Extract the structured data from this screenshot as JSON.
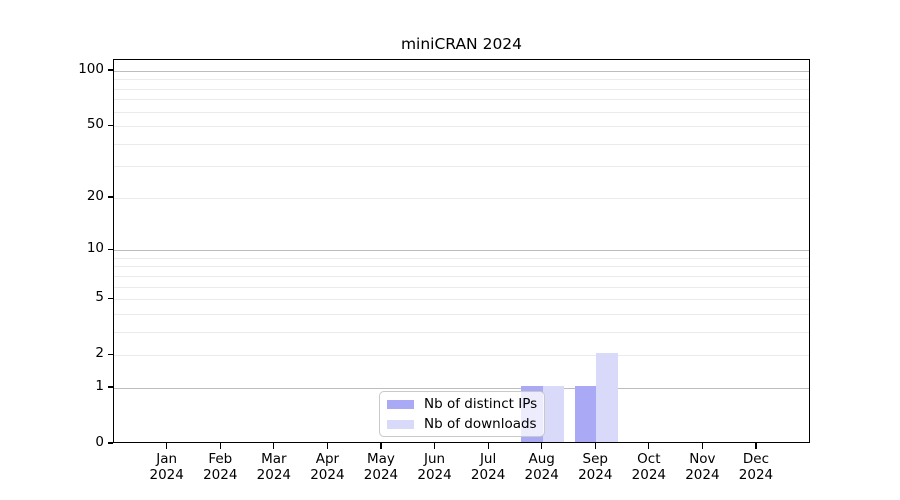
{
  "figure": {
    "title": "miniCRAN 2024"
  },
  "chart_data": {
    "type": "bar",
    "title": "miniCRAN 2024",
    "categories": [
      "Jan",
      "Feb",
      "Mar",
      "Apr",
      "May",
      "Jun",
      "Jul",
      "Aug",
      "Sep",
      "Oct",
      "Nov",
      "Dec"
    ],
    "category_year": "2024",
    "series": [
      {
        "name": "Nb of distinct IPs",
        "color": "#a9a9f6",
        "values": [
          0,
          0,
          0,
          0,
          0,
          0,
          0,
          1,
          1,
          0,
          0,
          0
        ]
      },
      {
        "name": "Nb of downloads",
        "color": "#d9d9f9",
        "values": [
          0,
          0,
          0,
          0,
          0,
          0,
          0,
          1,
          2,
          0,
          0,
          0
        ]
      }
    ],
    "yscale": "log1p",
    "ylim": [
      0,
      100
    ],
    "ytick_labels": [
      "0",
      "1",
      "2",
      "5",
      "10",
      "20",
      "50",
      "100"
    ],
    "ytick_values": [
      0,
      1,
      2,
      5,
      10,
      20,
      50,
      100
    ],
    "gridlines_major": [
      1,
      10,
      100
    ],
    "gridlines_minor": [
      2,
      3,
      4,
      5,
      6,
      7,
      8,
      9,
      20,
      30,
      40,
      50,
      60,
      70,
      80,
      90
    ],
    "legend_position": "bottom-center-inside",
    "grid": true,
    "colors": {
      "bar_distinct_ips": "#a9a9f6",
      "bar_downloads": "#d9d9f9",
      "grid_major": "#bdbdbd",
      "grid_minor": "#eaeaea",
      "axis": "#000000",
      "background": "#ffffff",
      "legend_border": "#c9c9c9"
    }
  }
}
